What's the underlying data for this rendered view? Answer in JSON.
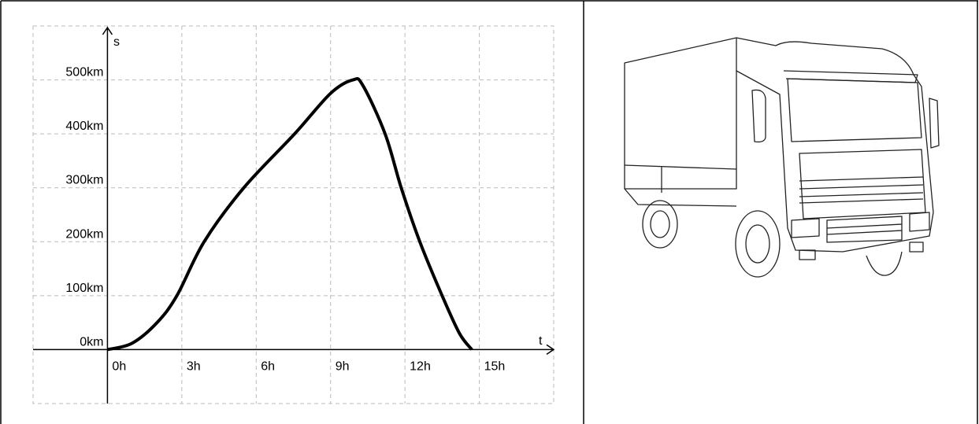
{
  "chart_data": {
    "type": "line",
    "x_label": "t",
    "y_label": "s",
    "xlim": [
      -3,
      18
    ],
    "ylim": [
      -100,
      600
    ],
    "xticks": [
      {
        "value": 0,
        "label": "0h"
      },
      {
        "value": 3,
        "label": "3h"
      },
      {
        "value": 6,
        "label": "6h"
      },
      {
        "value": 9,
        "label": "9h"
      },
      {
        "value": 12,
        "label": "12h"
      },
      {
        "value": 15,
        "label": "15h"
      }
    ],
    "yticks": [
      {
        "value": 0,
        "label": "0km"
      },
      {
        "value": 100,
        "label": "100km"
      },
      {
        "value": 200,
        "label": "200km"
      },
      {
        "value": 300,
        "label": "300km"
      },
      {
        "value": 400,
        "label": "400km"
      },
      {
        "value": 500,
        "label": "500km"
      }
    ],
    "grid": true,
    "color": "#000000",
    "x": [
      0,
      1,
      2,
      2.8,
      3.9,
      5.5,
      7.55,
      9,
      9.9,
      10.3,
      11.2,
      11.85,
      12.6,
      13.5,
      14.2,
      14.7
    ],
    "values": [
      0,
      12,
      50,
      100,
      200,
      300,
      400,
      475,
      500,
      490,
      400,
      300,
      200,
      100,
      30,
      0
    ]
  }
}
